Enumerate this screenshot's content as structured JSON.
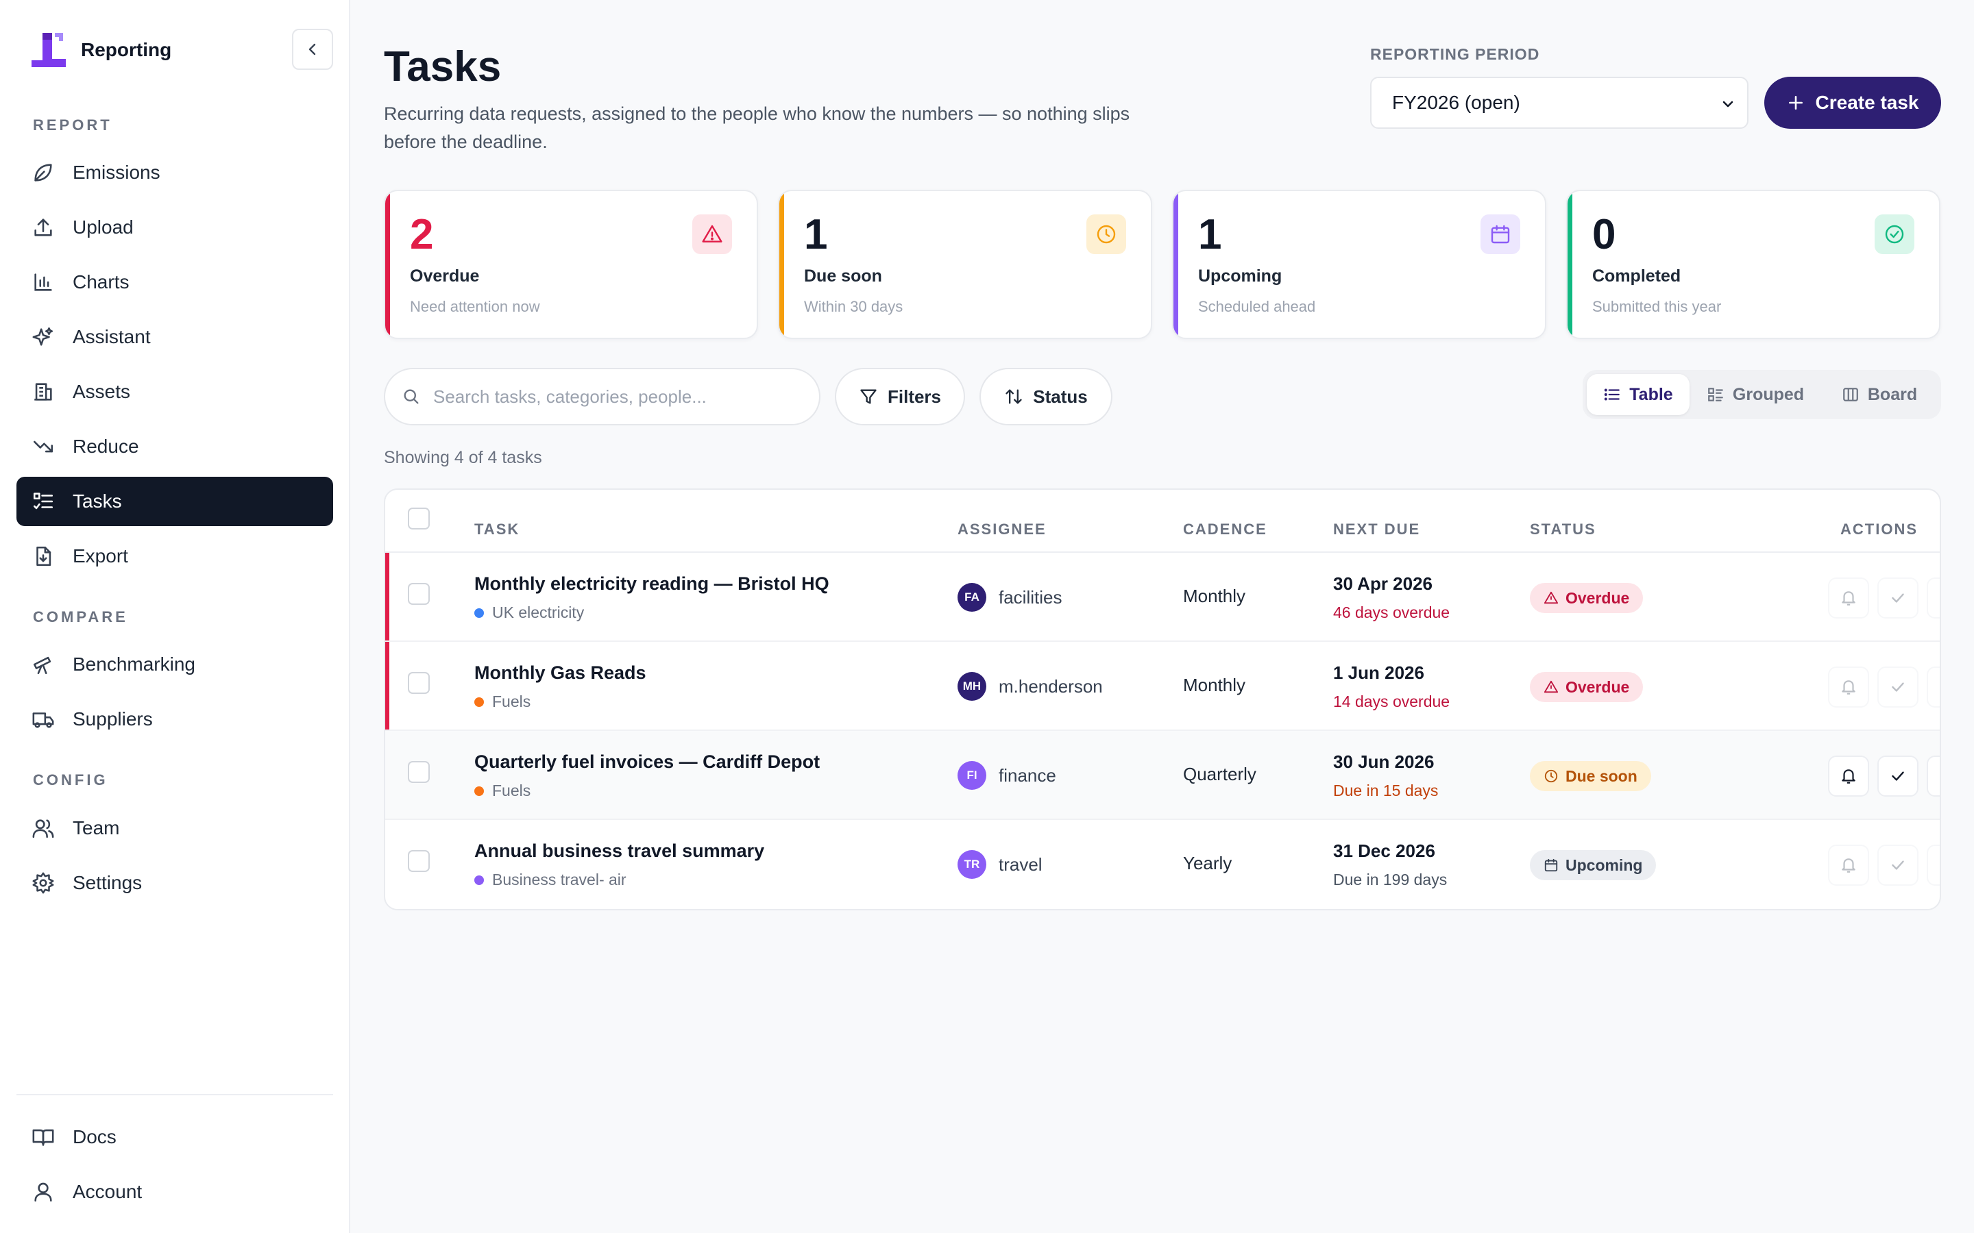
{
  "app": {
    "name": "Reporting"
  },
  "sidebar": {
    "sections": {
      "report": "REPORT",
      "compare": "COMPARE",
      "config": "CONFIG"
    },
    "items": {
      "emissions": "Emissions",
      "upload": "Upload",
      "charts": "Charts",
      "assistant": "Assistant",
      "assets": "Assets",
      "reduce": "Reduce",
      "tasks": "Tasks",
      "export": "Export",
      "benchmarking": "Benchmarking",
      "suppliers": "Suppliers",
      "team": "Team",
      "settings": "Settings",
      "docs": "Docs",
      "account": "Account"
    },
    "active": "Tasks"
  },
  "header": {
    "title": "Tasks",
    "description": "Recurring data requests, assigned to the people who know the numbers — so nothing slips before the deadline.",
    "period_label": "REPORTING PERIOD",
    "period_value": "FY2026 (open)",
    "create_label": "Create task"
  },
  "stats": {
    "overdue": {
      "value": "2",
      "label": "Overdue",
      "sub": "Need attention now",
      "color": "#e11d48"
    },
    "due_soon": {
      "value": "1",
      "label": "Due soon",
      "sub": "Within 30 days",
      "color": "#f59e0b"
    },
    "upcoming": {
      "value": "1",
      "label": "Upcoming",
      "sub": "Scheduled ahead",
      "color": "#8b5cf6"
    },
    "completed": {
      "value": "0",
      "label": "Completed",
      "sub": "Submitted this year",
      "color": "#10b981"
    }
  },
  "toolbar": {
    "search_placeholder": "Search tasks, categories, people...",
    "filters_label": "Filters",
    "status_label": "Status",
    "views": {
      "table": "Table",
      "grouped": "Grouped",
      "board": "Board"
    },
    "active_view": "Table"
  },
  "showing": "Showing 4 of 4 tasks",
  "table": {
    "columns": {
      "task": "TASK",
      "assignee": "ASSIGNEE",
      "cadence": "CADENCE",
      "next_due": "NEXT DUE",
      "status": "STATUS",
      "actions": "ACTIONS"
    },
    "rows": [
      {
        "title": "Monthly electricity reading — Bristol HQ",
        "category": "UK electricity",
        "category_color": "#3b82f6",
        "initials": "FA",
        "assignee": "facilities",
        "avatar_color": "#2e1f73",
        "cadence": "Monthly",
        "due_date": "30 Apr 2026",
        "due_note": "46 days overdue",
        "status": "Overdue"
      },
      {
        "title": "Monthly Gas Reads",
        "category": "Fuels",
        "category_color": "#f97316",
        "initials": "MH",
        "assignee": "m.henderson",
        "avatar_color": "#2e1f73",
        "cadence": "Monthly",
        "due_date": "1 Jun 2026",
        "due_note": "14 days overdue",
        "status": "Overdue"
      },
      {
        "title": "Quarterly fuel invoices — Cardiff Depot",
        "category": "Fuels",
        "category_color": "#f97316",
        "initials": "FI",
        "assignee": "finance",
        "avatar_color": "#8b5cf6",
        "cadence": "Quarterly",
        "due_date": "30 Jun 2026",
        "due_note": "Due in 15 days",
        "status": "Due soon"
      },
      {
        "title": "Annual business travel summary",
        "category": "Business travel- air",
        "category_color": "#8b5cf6",
        "initials": "TR",
        "assignee": "travel",
        "avatar_color": "#8b5cf6",
        "cadence": "Yearly",
        "due_date": "31 Dec 2026",
        "due_note": "Due in 199 days",
        "status": "Upcoming"
      }
    ]
  }
}
